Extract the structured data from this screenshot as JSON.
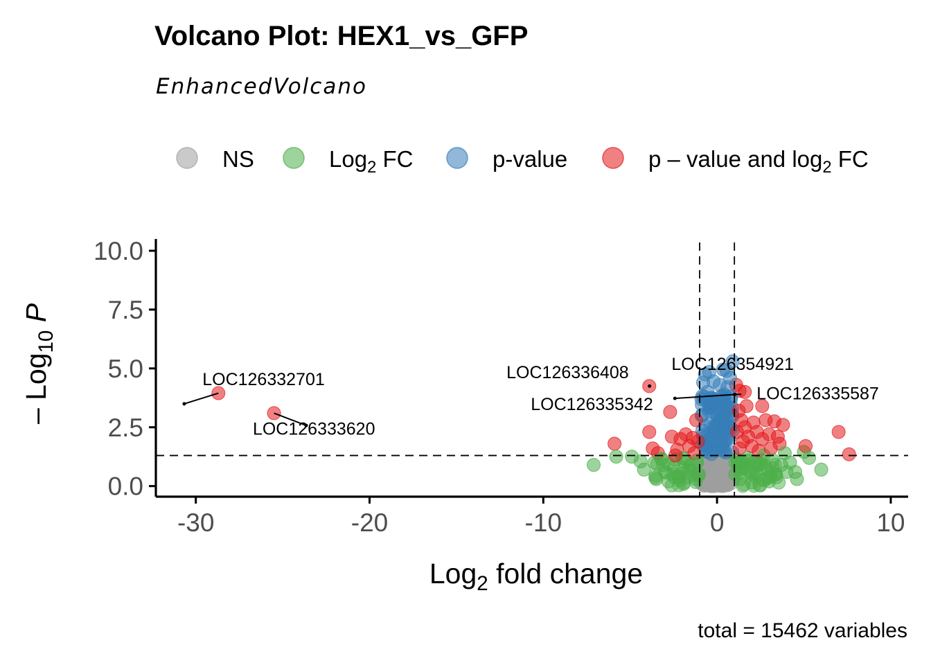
{
  "chart_data": {
    "type": "scatter",
    "title": "Volcano Plot: HEX1_vs_GFP",
    "subtitle": "EnhancedVolcano",
    "caption": "total = 15462 variables",
    "xlabel": {
      "main": "Log",
      "sub": "2",
      "rest": " fold change"
    },
    "ylabel": {
      "main": "– Log",
      "sub": "10",
      "rest": " P"
    },
    "xlim": [
      -32.3,
      11
    ],
    "ylim": [
      -0.45,
      10.5
    ],
    "x_ticks": [
      -30,
      -20,
      -10,
      0,
      10
    ],
    "x_tick_labels": [
      "-30",
      "-20",
      "-10",
      "0",
      "10"
    ],
    "y_ticks": [
      0,
      2.5,
      5,
      7.5,
      10
    ],
    "y_tick_labels": [
      "0.0",
      "2.5",
      "5.0",
      "7.5",
      "10.0"
    ],
    "thresholds": {
      "log2fc": [
        -1,
        1
      ],
      "neg_log10_p": 1.3
    },
    "grid": false,
    "legend_position": "top",
    "legend": [
      {
        "key": "NS",
        "color": "#9e9e9e",
        "parts": [
          {
            "t": "NS"
          }
        ]
      },
      {
        "key": "FC",
        "color": "#4daf4a",
        "parts": [
          {
            "t": "Log"
          },
          {
            "t": "2",
            "sub": true
          },
          {
            "t": " FC"
          }
        ]
      },
      {
        "key": "P",
        "color": "#377eb8",
        "parts": [
          {
            "t": "p-value"
          }
        ]
      },
      {
        "key": "FC_P",
        "color": "#e41a1c",
        "parts": [
          {
            "t": "p – value and log"
          },
          {
            "t": "2",
            "sub": true
          },
          {
            "t": " FC"
          }
        ]
      }
    ],
    "labeled_points": [
      {
        "gene": "LOC126332701",
        "x": -28.7,
        "y": 3.95,
        "label_x": -26.1,
        "label_y": 4.55
      },
      {
        "gene": "LOC126333620",
        "x": -25.5,
        "y": 3.1,
        "label_x": -23.2,
        "label_y": 2.45
      },
      {
        "gene": "LOC126336408",
        "x": -3.9,
        "y": 4.25,
        "label_x": -8.6,
        "label_y": 4.85
      },
      {
        "gene": "LOC126354921",
        "x": 0.9,
        "y": 5.3,
        "label_x": 0.9,
        "label_y": 5.2
      },
      {
        "gene": "LOC126335342",
        "x": 1.2,
        "y": 3.9,
        "label_x": -7.2,
        "label_y": 3.5
      },
      {
        "gene": "LOC126335587",
        "x": 1.4,
        "y": 3.9,
        "label_x": 5.8,
        "label_y": 3.95
      }
    ],
    "points": [
      {
        "x": -28.7,
        "y": 3.95,
        "c": "FC_P"
      },
      {
        "x": -25.5,
        "y": 3.1,
        "c": "FC_P"
      },
      {
        "x": -7.1,
        "y": 0.9,
        "c": "FC"
      },
      {
        "x": -5.9,
        "y": 1.8,
        "c": "FC_P"
      },
      {
        "x": -5.8,
        "y": 1.25,
        "c": "FC"
      },
      {
        "x": -4.9,
        "y": 1.25,
        "c": "FC"
      },
      {
        "x": -4.4,
        "y": 1.05,
        "c": "FC"
      },
      {
        "x": -4.2,
        "y": 0.7,
        "c": "FC"
      },
      {
        "x": -3.9,
        "y": 4.25,
        "c": "FC_P"
      },
      {
        "x": -3.9,
        "y": 2.3,
        "c": "FC_P"
      },
      {
        "x": -3.7,
        "y": 1.6,
        "c": "FC_P"
      },
      {
        "x": -3.5,
        "y": 0.3,
        "c": "FC"
      },
      {
        "x": -3.4,
        "y": 1.4,
        "c": "FC_P"
      },
      {
        "x": -3.6,
        "y": 1.0,
        "c": "FC"
      },
      {
        "x": -3.2,
        "y": 1.15,
        "c": "FC"
      },
      {
        "x": -3.0,
        "y": 0.6,
        "c": "FC"
      },
      {
        "x": -2.7,
        "y": 3.15,
        "c": "FC_P"
      },
      {
        "x": -2.6,
        "y": 2.1,
        "c": "FC_P"
      },
      {
        "x": -2.5,
        "y": 0.8,
        "c": "FC"
      },
      {
        "x": -2.3,
        "y": 1.55,
        "c": "FC_P"
      },
      {
        "x": -2.2,
        "y": 0.4,
        "c": "FC"
      },
      {
        "x": -2.1,
        "y": 2.0,
        "c": "FC_P"
      },
      {
        "x": -2.0,
        "y": 1.2,
        "c": "FC"
      },
      {
        "x": -1.8,
        "y": 2.2,
        "c": "FC_P"
      },
      {
        "x": -1.7,
        "y": 0.65,
        "c": "FC"
      },
      {
        "x": -1.6,
        "y": 1.7,
        "c": "FC_P"
      },
      {
        "x": -1.5,
        "y": 0.9,
        "c": "FC"
      },
      {
        "x": -1.4,
        "y": 2.05,
        "c": "FC_P"
      },
      {
        "x": -1.3,
        "y": 1.4,
        "c": "FC_P"
      },
      {
        "x": -1.25,
        "y": 0.3,
        "c": "FC"
      },
      {
        "x": -1.2,
        "y": 2.8,
        "c": "FC_P"
      },
      {
        "x": -1.15,
        "y": 1.0,
        "c": "FC"
      },
      {
        "x": -1.1,
        "y": 1.9,
        "c": "FC_P"
      },
      {
        "x": -1.05,
        "y": 0.5,
        "c": "FC"
      },
      {
        "x": -2.8,
        "y": 0.2,
        "c": "FC"
      },
      {
        "x": -1.9,
        "y": 0.15,
        "c": "FC"
      },
      {
        "x": -2.4,
        "y": 1.3,
        "c": "FC_P"
      },
      {
        "x": -3.1,
        "y": 0.9,
        "c": "FC"
      },
      {
        "x": 1.05,
        "y": 0.5,
        "c": "FC"
      },
      {
        "x": 1.1,
        "y": 4.3,
        "c": "FC_P"
      },
      {
        "x": 1.15,
        "y": 2.3,
        "c": "FC_P"
      },
      {
        "x": 1.2,
        "y": 1.0,
        "c": "FC"
      },
      {
        "x": 1.25,
        "y": 3.2,
        "c": "FC_P"
      },
      {
        "x": 1.3,
        "y": 1.6,
        "c": "FC_P"
      },
      {
        "x": 1.35,
        "y": 0.3,
        "c": "FC"
      },
      {
        "x": 1.4,
        "y": 2.8,
        "c": "FC_P"
      },
      {
        "x": 1.5,
        "y": 1.9,
        "c": "FC_P"
      },
      {
        "x": 1.55,
        "y": 0.8,
        "c": "FC"
      },
      {
        "x": 1.6,
        "y": 2.5,
        "c": "FC_P"
      },
      {
        "x": 1.7,
        "y": 3.4,
        "c": "FC_P"
      },
      {
        "x": 1.75,
        "y": 1.2,
        "c": "FC"
      },
      {
        "x": 1.8,
        "y": 2.1,
        "c": "FC_P"
      },
      {
        "x": 1.9,
        "y": 0.6,
        "c": "FC"
      },
      {
        "x": 2.0,
        "y": 1.7,
        "c": "FC_P"
      },
      {
        "x": 2.1,
        "y": 2.7,
        "c": "FC_P"
      },
      {
        "x": 2.15,
        "y": 1.0,
        "c": "FC"
      },
      {
        "x": 2.2,
        "y": 0.4,
        "c": "FC"
      },
      {
        "x": 2.3,
        "y": 2.3,
        "c": "FC_P"
      },
      {
        "x": 2.4,
        "y": 1.5,
        "c": "FC_P"
      },
      {
        "x": 2.5,
        "y": 0.9,
        "c": "FC"
      },
      {
        "x": 2.6,
        "y": 2.0,
        "c": "FC_P"
      },
      {
        "x": 2.7,
        "y": 1.3,
        "c": "FC"
      },
      {
        "x": 2.8,
        "y": 2.8,
        "c": "FC_P"
      },
      {
        "x": 2.9,
        "y": 0.7,
        "c": "FC"
      },
      {
        "x": 3.0,
        "y": 2.2,
        "c": "FC_P"
      },
      {
        "x": 3.1,
        "y": 1.6,
        "c": "FC_P"
      },
      {
        "x": 3.2,
        "y": 1.1,
        "c": "FC"
      },
      {
        "x": 3.3,
        "y": 2.75,
        "c": "FC_P"
      },
      {
        "x": 3.4,
        "y": 0.5,
        "c": "FC"
      },
      {
        "x": 3.5,
        "y": 2.1,
        "c": "FC_P"
      },
      {
        "x": 3.6,
        "y": 1.8,
        "c": "FC_P"
      },
      {
        "x": 3.7,
        "y": 0.9,
        "c": "FC"
      },
      {
        "x": 3.8,
        "y": 2.6,
        "c": "FC_P"
      },
      {
        "x": 3.9,
        "y": 1.4,
        "c": "FC"
      },
      {
        "x": 4.0,
        "y": 0.6,
        "c": "FC"
      },
      {
        "x": 4.2,
        "y": 1.0,
        "c": "FC"
      },
      {
        "x": 4.5,
        "y": 0.6,
        "c": "FC"
      },
      {
        "x": 4.6,
        "y": 0.3,
        "c": "FC"
      },
      {
        "x": 5.0,
        "y": 1.45,
        "c": "FC"
      },
      {
        "x": 5.1,
        "y": 1.7,
        "c": "FC_P"
      },
      {
        "x": 5.3,
        "y": 1.2,
        "c": "FC"
      },
      {
        "x": 6.0,
        "y": 0.7,
        "c": "FC"
      },
      {
        "x": 7.0,
        "y": 2.3,
        "c": "FC_P"
      },
      {
        "x": 7.6,
        "y": 1.35,
        "c": "FC_P"
      },
      {
        "x": 2.6,
        "y": 3.4,
        "c": "FC_P"
      },
      {
        "x": 1.6,
        "y": 4.0,
        "c": "FC_P"
      },
      {
        "x": 3.0,
        "y": 0.2,
        "c": "FC"
      },
      {
        "x": 2.0,
        "y": 0.15,
        "c": "FC"
      },
      {
        "x": 1.3,
        "y": 4.05,
        "c": "FC_P"
      },
      {
        "x": -0.7,
        "y": 4.75,
        "c": "P"
      },
      {
        "x": -0.45,
        "y": 4.85,
        "c": "P"
      },
      {
        "x": 0.35,
        "y": 4.95,
        "c": "P"
      },
      {
        "x": 0.55,
        "y": 4.9,
        "c": "P"
      },
      {
        "x": 0.9,
        "y": 5.3,
        "c": "P"
      },
      {
        "x": 0.75,
        "y": 4.6,
        "c": "P"
      },
      {
        "x": -0.8,
        "y": 4.4,
        "c": "P"
      },
      {
        "x": -0.2,
        "y": 4.45,
        "c": "P"
      },
      {
        "x": 0.15,
        "y": 4.3,
        "c": "P"
      },
      {
        "x": 0.6,
        "y": 4.2,
        "c": "P"
      },
      {
        "x": -0.55,
        "y": 4.0,
        "c": "P"
      },
      {
        "x": 0.8,
        "y": 3.8,
        "c": "P"
      },
      {
        "x": -0.9,
        "y": 3.7,
        "c": "P"
      },
      {
        "x": 0.4,
        "y": 3.9,
        "c": "P"
      },
      {
        "x": 0.05,
        "y": 3.6,
        "c": "P"
      },
      {
        "x": -0.3,
        "y": 3.75,
        "c": "P"
      }
    ]
  }
}
